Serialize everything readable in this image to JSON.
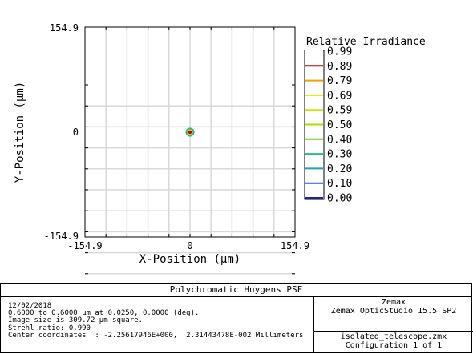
{
  "chart_data": {
    "type": "heatmap",
    "title": "Polychromatic Huygens PSF",
    "xlabel": "X-Position (μm)",
    "ylabel": "Y-Position (μm)",
    "xlim": [
      -154.9,
      154.9
    ],
    "ylim": [
      -154.9,
      154.9
    ],
    "x_ticks": [
      "-154.9",
      "0",
      "154.9"
    ],
    "y_ticks": [
      "154.9",
      "0",
      "-154.9"
    ],
    "grid": true,
    "spot": {
      "x": 0,
      "y": 0
    },
    "legend": {
      "title": "Relative Irradiance",
      "placement": "right",
      "levels": [
        {
          "label": "0.99",
          "color": "#ffffff"
        },
        {
          "label": "0.89",
          "color": "#c00000"
        },
        {
          "label": "0.79",
          "color": "#f0a000"
        },
        {
          "label": "0.69",
          "color": "#e6e600"
        },
        {
          "label": "0.59",
          "color": "#c8e600"
        },
        {
          "label": "0.50",
          "color": "#a0e600"
        },
        {
          "label": "0.40",
          "color": "#60d020"
        },
        {
          "label": "0.30",
          "color": "#20c080"
        },
        {
          "label": "0.20",
          "color": "#20a0c0"
        },
        {
          "label": "0.10",
          "color": "#2060c0"
        },
        {
          "label": "0.00",
          "color": "#2020a0"
        }
      ]
    }
  },
  "info": {
    "title": "Polychromatic Huygens PSF",
    "date": "12/02/2018",
    "line1": "0.6000 to 0.6000 μm at 0.0250, 0.0000 (deg).",
    "line2": "Image size is 309.72 μm square.",
    "line3": "Strehl ratio: 0.990",
    "line4": "Center coordinates  : -2.25617946E+000,  2.31443478E-002 Millimeters",
    "company": "Zemax",
    "product": "Zemax OpticStudio 15.5 SP2",
    "file": "isolated_telescope.zmx",
    "config": "Configuration 1 of 1"
  }
}
